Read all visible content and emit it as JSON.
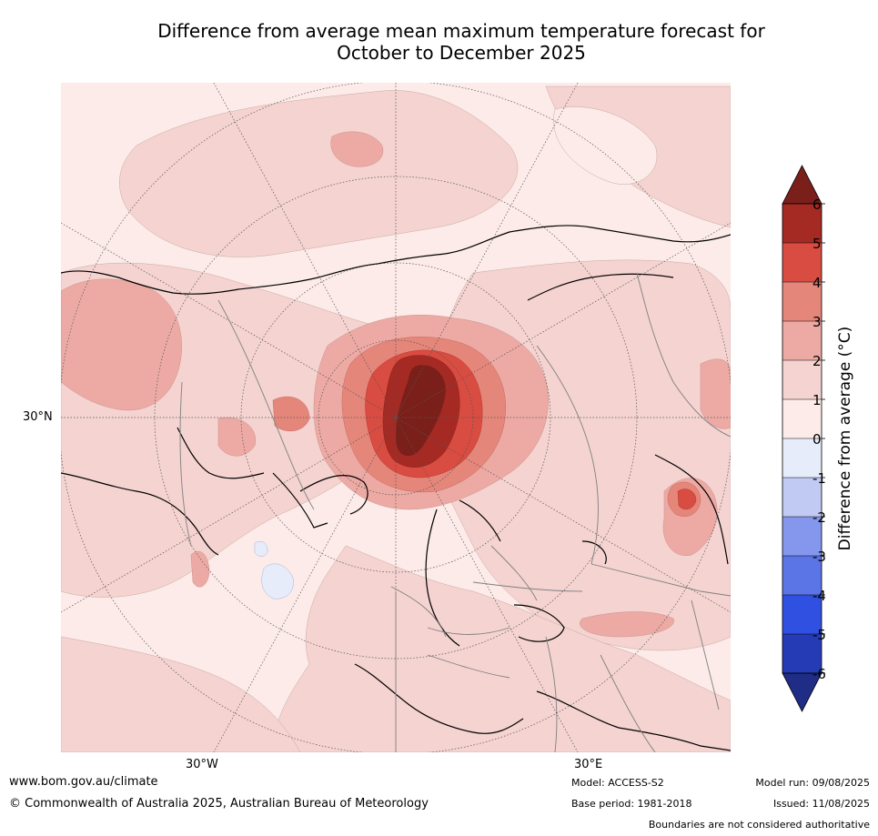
{
  "title_line1": "Difference from average mean maximum temperature forecast for",
  "title_line2": "October to December 2025",
  "graticule_labels": {
    "lat_30n": "30°N",
    "lon_30w": "30°W",
    "lon_30e": "30°E"
  },
  "colorbar": {
    "label": "Difference from average ($^\\circ$C)",
    "label_display": "Difference from average (°C)",
    "ticks": [
      "6",
      "5",
      "4",
      "3",
      "2",
      "1",
      "0",
      "-1",
      "-2",
      "-3",
      "-4",
      "-5",
      "-6"
    ],
    "colors": [
      "#a52a24",
      "#d94c41",
      "#e5867a",
      "#edaaa4",
      "#f4d3d0",
      "#fcebe8",
      "#e6ecfa",
      "#c0caf2",
      "#8597ec",
      "#5b74e6",
      "#2f50e0",
      "#253ab5"
    ],
    "over_color": "#7b1f1a",
    "under_color": "#1f2d86"
  },
  "footer": {
    "website": "www.bom.gov.au/climate",
    "copyright": "© Commonwealth of Australia 2025, Australian Bureau of Meteorology",
    "model": "Model: ACCESS-S2",
    "base_period": "Base period: 1981-2018",
    "model_run": "Model run: 09/08/2025",
    "issued": "Issued: 11/08/2025",
    "boundaries_note": "Boundaries are not considered authoritative"
  }
}
